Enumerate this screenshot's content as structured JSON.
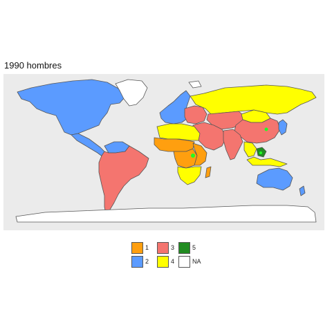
{
  "title": "1990 hombres",
  "colors": {
    "1": "#ff9f0f",
    "2": "#5b9bff",
    "3": "#f4756f",
    "4": "#ffff00",
    "5": "#218c21",
    "NA": "#ffffff",
    "border": "#555555",
    "panel": "#ebebeb",
    "highlight": "#22ff22"
  },
  "legend": {
    "items": [
      {
        "key": "1",
        "label": "1"
      },
      {
        "key": "2",
        "label": "2"
      },
      {
        "key": "3",
        "label": "3"
      },
      {
        "key": "4",
        "label": "4"
      },
      {
        "key": "5",
        "label": "5"
      },
      {
        "key": "NA",
        "label": "NA"
      }
    ]
  },
  "regions": [
    {
      "name": "north-america",
      "cls": "2"
    },
    {
      "name": "greenland",
      "cls": "NA"
    },
    {
      "name": "mexico-central-america",
      "cls": "2"
    },
    {
      "name": "venezuela-guianas",
      "cls": "2"
    },
    {
      "name": "south-america",
      "cls": "3"
    },
    {
      "name": "western-europe",
      "cls": "2"
    },
    {
      "name": "eastern-europe",
      "cls": "3"
    },
    {
      "name": "russia",
      "cls": "4"
    },
    {
      "name": "kazakhstan-central-asia",
      "cls": "3"
    },
    {
      "name": "china",
      "cls": "3"
    },
    {
      "name": "mongolia",
      "cls": "4"
    },
    {
      "name": "middle-east",
      "cls": "3"
    },
    {
      "name": "india",
      "cls": "3"
    },
    {
      "name": "southeast-asia",
      "cls": "4"
    },
    {
      "name": "japan-korea",
      "cls": "2"
    },
    {
      "name": "indonesia",
      "cls": "4"
    },
    {
      "name": "borneo",
      "cls": "5"
    },
    {
      "name": "north-africa",
      "cls": "4"
    },
    {
      "name": "sahel-west-africa",
      "cls": "1"
    },
    {
      "name": "central-africa",
      "cls": "1"
    },
    {
      "name": "east-africa",
      "cls": "1"
    },
    {
      "name": "southern-africa",
      "cls": "4"
    },
    {
      "name": "madagascar",
      "cls": "1"
    },
    {
      "name": "australia",
      "cls": "2"
    },
    {
      "name": "new-zealand",
      "cls": "2"
    },
    {
      "name": "antarctica",
      "cls": "NA"
    },
    {
      "name": "svalbard-arctic",
      "cls": "NA"
    }
  ]
}
